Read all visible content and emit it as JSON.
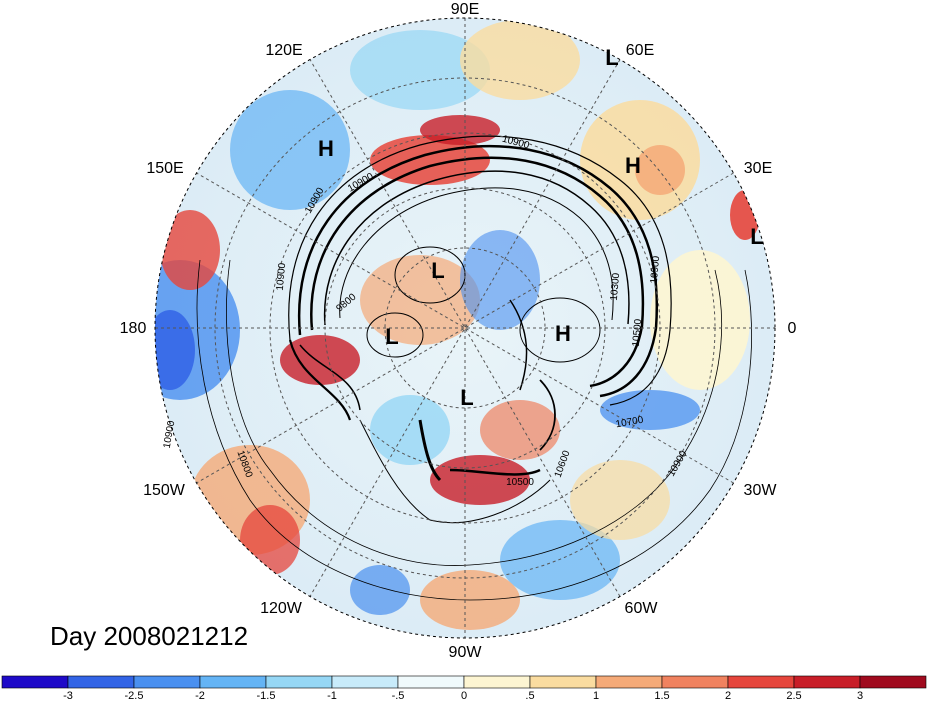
{
  "map": {
    "date_label": "Day 2008021212",
    "longitude_labels": [
      "90E",
      "60E",
      "30E",
      "0",
      "30W",
      "60W",
      "90W",
      "120W",
      "150W",
      "180",
      "150E",
      "120E"
    ],
    "pressure_centers": [
      "H",
      "H",
      "H",
      "L",
      "L",
      "L",
      "L",
      "L"
    ],
    "contour_labels": [
      "10900",
      "10900",
      "10900",
      "10800",
      "10900",
      "10500",
      "10300",
      "10900",
      "9800",
      "10700",
      "10600",
      "10500",
      "10900",
      "10900"
    ]
  },
  "colorbar": {
    "tick_labels": [
      "-3",
      "-2.5",
      "-2",
      "-1.5",
      "-1",
      "-.5",
      "0",
      ".5",
      "1",
      "1.5",
      "2",
      "2.5",
      "3"
    ],
    "colors": [
      "#1e0ac8",
      "#3264e6",
      "#4a90f0",
      "#64b4f5",
      "#96d7f5",
      "#c8ebfa",
      "#f0fafc",
      "#fdf5d2",
      "#fadca0",
      "#f5aa78",
      "#f0825f",
      "#e6463c",
      "#c81e28",
      "#a00a1e"
    ]
  }
}
